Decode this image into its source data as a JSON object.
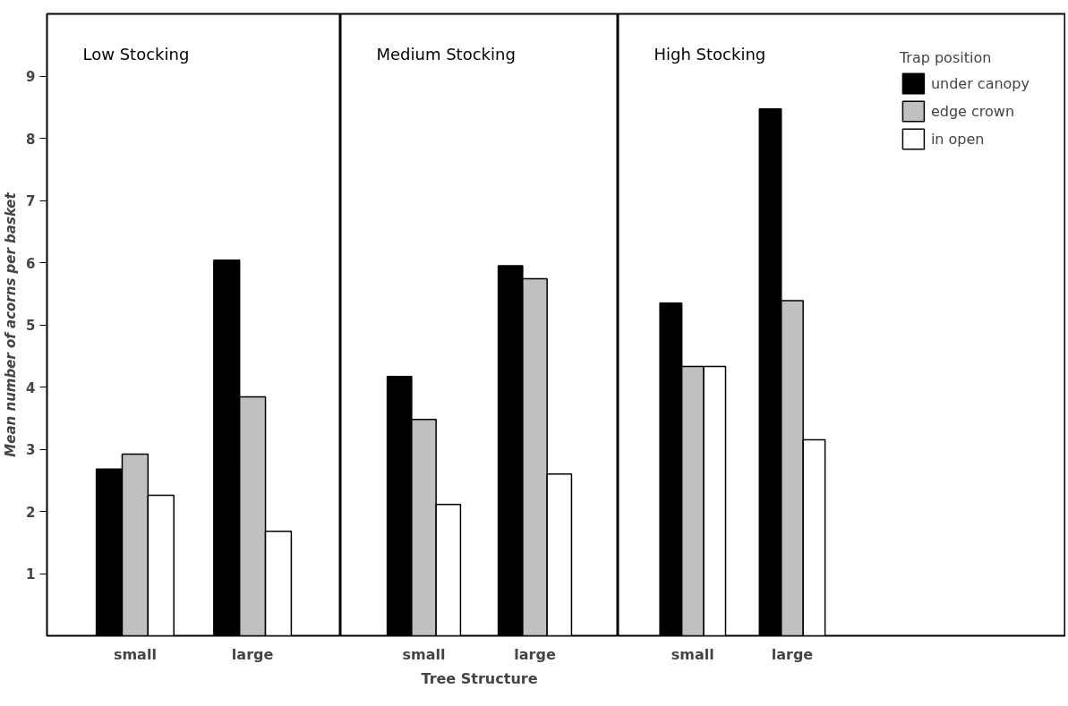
{
  "chart_data": [
    {
      "type": "bar",
      "title": "Low Stocking",
      "ylabel": "Mean number of acorns per basket",
      "categories": [
        "small",
        "large"
      ],
      "ylim": [
        0,
        10
      ],
      "yticks": [
        1,
        2,
        3,
        4,
        5,
        6,
        7,
        8,
        9
      ],
      "grid": false,
      "legend": false,
      "series": [
        {
          "color": "#000000",
          "values": [
            2.68,
            6.04
          ]
        },
        {
          "color": "#c0c0c0",
          "values": [
            2.92,
            3.84
          ]
        },
        {
          "color": "#ffffff",
          "values": [
            2.26,
            1.68
          ]
        }
      ]
    },
    {
      "type": "bar",
      "title": "Medium Stocking",
      "xlabel": "Tree Structure",
      "categories": [
        "small",
        "large"
      ],
      "ylim": [
        0,
        10
      ],
      "yticks": [
        1,
        2,
        3,
        4,
        5,
        6,
        7,
        8,
        9
      ],
      "grid": false,
      "legend": false,
      "tick_labels": "x",
      "series": [
        {
          "color": "#000000",
          "values": [
            4.17,
            5.95
          ]
        },
        {
          "color": "#c0c0c0",
          "values": [
            3.48,
            5.74
          ]
        },
        {
          "color": "#ffffff",
          "values": [
            2.11,
            2.6
          ]
        }
      ]
    },
    {
      "type": "bar",
      "title": "High Stocking",
      "legend_title": "Trap position",
      "categories": [
        "small",
        "large"
      ],
      "ylim": [
        0,
        10
      ],
      "yticks": [
        1,
        2,
        3,
        4,
        5,
        6,
        7,
        8,
        9
      ],
      "grid": false,
      "legend": "top right",
      "tick_labels": "x",
      "series": [
        {
          "name": "under canopy",
          "color": "#000000",
          "values": [
            5.35,
            8.47
          ]
        },
        {
          "name": "edge crown",
          "color": "#c0c0c0",
          "values": [
            4.33,
            5.39
          ]
        },
        {
          "name": "in open",
          "color": "#ffffff",
          "values": [
            4.33,
            3.15
          ]
        }
      ]
    }
  ]
}
